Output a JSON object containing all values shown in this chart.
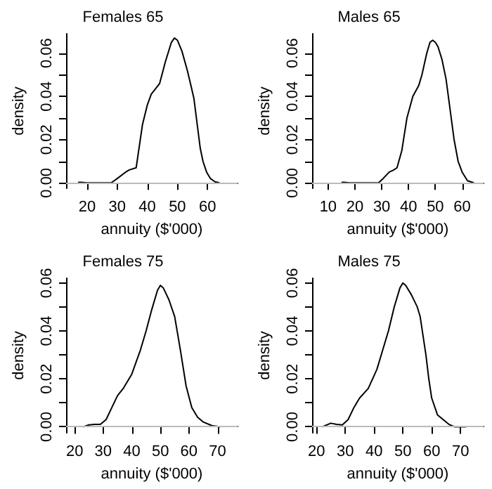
{
  "chart_data": [
    {
      "type": "line",
      "title": "Females 65",
      "xlabel": "annuity ($'000)",
      "ylabel": "density",
      "color": "#000000",
      "x": [
        17,
        18,
        20,
        24,
        28,
        30,
        32.8,
        34,
        36.3,
        38.4,
        40,
        41.3,
        43,
        44.1,
        46,
        48,
        49,
        50,
        51.5,
        53.3,
        54.5,
        55.5,
        56.5,
        57.6,
        58.5,
        59.7,
        61,
        62.5,
        64
      ],
      "values": [
        0.0003,
        0.0003,
        0,
        0,
        0,
        0.002,
        0.005,
        0.006,
        0.007,
        0.027,
        0.036,
        0.041,
        0.044,
        0.046,
        0.056,
        0.065,
        0.067,
        0.066,
        0.061,
        0.052,
        0.045,
        0.039,
        0.028,
        0.016,
        0.01,
        0.005,
        0.002,
        0.0005,
        0
      ],
      "xlim": [
        13,
        70
      ],
      "xticks": [
        20,
        30,
        40,
        50,
        60
      ],
      "ylim": [
        -0.0025,
        0.069
      ],
      "yticks": [
        {
          "value": 0,
          "label": "0.00"
        },
        {
          "value": 0.01,
          "label": null
        },
        {
          "value": 0.02,
          "label": "0.02"
        },
        {
          "value": 0.03,
          "label": null
        },
        {
          "value": 0.04,
          "label": "0.04"
        },
        {
          "value": 0.05,
          "label": null
        },
        {
          "value": 0.06,
          "label": "0.06"
        }
      ],
      "ref_lines": [
        {
          "axis": "y",
          "value": 0,
          "color": "#bbbbbb"
        }
      ]
    },
    {
      "type": "line",
      "title": "Males 65",
      "xlabel": "annuity ($'000)",
      "ylabel": "density",
      "color": "#000000",
      "x": [
        15,
        16,
        18,
        22,
        28.8,
        30.5,
        32.8,
        34.5,
        35.7,
        37.5,
        39.4,
        41.6,
        43.8,
        45,
        46.8,
        48,
        49,
        50,
        51,
        52.5,
        54,
        55.5,
        57,
        58.5,
        60,
        62,
        64.4
      ],
      "values": [
        0.0003,
        0.0003,
        0,
        0,
        0,
        0.002,
        0.005,
        0.006,
        0.007,
        0.015,
        0.03,
        0.04,
        0.045,
        0.05,
        0.06,
        0.065,
        0.066,
        0.065,
        0.063,
        0.057,
        0.048,
        0.034,
        0.02,
        0.01,
        0.005,
        0.001,
        0
      ],
      "xlim": [
        4,
        68
      ],
      "xticks": [
        10,
        20,
        30,
        40,
        50,
        60
      ],
      "ylim": [
        -0.0025,
        0.069
      ],
      "yticks": [
        {
          "value": 0,
          "label": "0.00"
        },
        {
          "value": 0.01,
          "label": null
        },
        {
          "value": 0.02,
          "label": "0.02"
        },
        {
          "value": 0.03,
          "label": null
        },
        {
          "value": 0.04,
          "label": "0.04"
        },
        {
          "value": 0.05,
          "label": null
        },
        {
          "value": 0.06,
          "label": "0.06"
        }
      ],
      "ref_lines": [
        {
          "axis": "y",
          "value": 0,
          "color": "#bbbbbb"
        }
      ]
    },
    {
      "type": "line",
      "title": "Females 75",
      "xlabel": "annuity ($'000)",
      "ylabel": "density",
      "color": "#000000",
      "x": [
        23,
        25,
        27,
        29,
        31,
        33,
        35,
        37,
        40,
        43,
        45,
        47,
        49,
        50,
        51,
        53,
        55,
        57,
        59,
        61,
        63,
        65,
        68,
        71
      ],
      "values": [
        0,
        0.0008,
        0.001,
        0.001,
        0.003,
        0.008,
        0.013,
        0.016,
        0.022,
        0.032,
        0.04,
        0.049,
        0.057,
        0.059,
        0.058,
        0.053,
        0.046,
        0.032,
        0.017,
        0.008,
        0.004,
        0.002,
        0.0005,
        0
      ],
      "xlim": [
        17,
        77
      ],
      "xticks": [
        20,
        30,
        40,
        50,
        60,
        70
      ],
      "ylim": [
        -0.0025,
        0.062
      ],
      "yticks": [
        {
          "value": 0,
          "label": "0.00"
        },
        {
          "value": 0.01,
          "label": null
        },
        {
          "value": 0.02,
          "label": "0.02"
        },
        {
          "value": 0.03,
          "label": null
        },
        {
          "value": 0.04,
          "label": "0.04"
        },
        {
          "value": 0.05,
          "label": null
        },
        {
          "value": 0.06,
          "label": "0.06"
        }
      ],
      "ref_lines": [
        {
          "axis": "y",
          "value": 0,
          "color": "#bbbbbb"
        }
      ]
    },
    {
      "type": "line",
      "title": "Males 75",
      "xlabel": "annuity ($'000)",
      "ylabel": "density",
      "color": "#000000",
      "x": [
        22,
        24,
        25,
        27,
        29,
        31,
        33,
        35,
        38,
        41,
        43,
        45,
        47,
        49,
        50,
        51,
        53,
        55,
        56,
        58,
        59,
        60,
        62,
        64,
        66,
        68,
        72
      ],
      "values": [
        0,
        0.001,
        0.0015,
        0.001,
        0.0008,
        0.003,
        0.008,
        0.012,
        0.016,
        0.024,
        0.032,
        0.04,
        0.05,
        0.058,
        0.06,
        0.059,
        0.055,
        0.05,
        0.046,
        0.03,
        0.02,
        0.012,
        0.005,
        0.003,
        0.001,
        0,
        0
      ],
      "xlim": [
        18.5,
        78
      ],
      "xticks": [
        20,
        30,
        40,
        50,
        60,
        70
      ],
      "ylim": [
        -0.0025,
        0.062
      ],
      "yticks": [
        {
          "value": 0,
          "label": "0.00"
        },
        {
          "value": 0.01,
          "label": null
        },
        {
          "value": 0.02,
          "label": "0.02"
        },
        {
          "value": 0.03,
          "label": null
        },
        {
          "value": 0.04,
          "label": "0.04"
        },
        {
          "value": 0.05,
          "label": null
        },
        {
          "value": 0.06,
          "label": "0.06"
        }
      ],
      "ref_lines": [
        {
          "axis": "y",
          "value": 0,
          "color": "#bbbbbb"
        }
      ]
    }
  ]
}
